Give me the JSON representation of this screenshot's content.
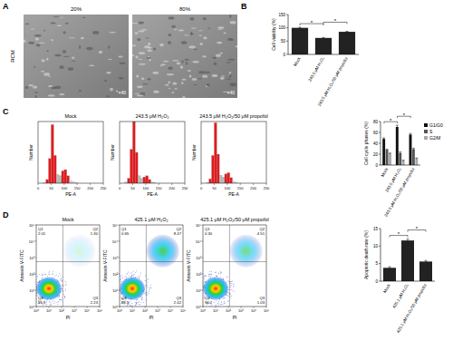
{
  "panel_labels": [
    "A",
    "B",
    "C",
    "D"
  ],
  "micrographs": {
    "row_label": "RCM",
    "images": [
      {
        "title": "20%",
        "magnification": "×40"
      },
      {
        "title": "80%",
        "magnification": "×40"
      }
    ]
  },
  "histograms": {
    "type": "histogram",
    "x_label": "PE-A",
    "y_label": "Number",
    "xlim": [
      0,
      250
    ],
    "xticks": [
      0,
      50,
      100,
      150,
      200,
      250
    ],
    "ylim": [
      0,
      100
    ],
    "tick_labels": "x",
    "bins": [
      0,
      10,
      20,
      30,
      40,
      50,
      60,
      70,
      80,
      90,
      100,
      110,
      120,
      130,
      140,
      150,
      160,
      170,
      180,
      190,
      200,
      210,
      220,
      230,
      240,
      250
    ],
    "colors": [
      "#d9d9d9",
      "#d9d9d9",
      "#d9d9d9",
      "#e31a1c",
      "#e31a1c",
      "#e31a1c",
      "#e31a1c",
      "#bdbdbd",
      "#bdbdbd",
      "#e31a1c",
      "#e31a1c",
      "#e31a1c",
      "#d9d9d9",
      "#d9d9d9",
      "#d9d9d9",
      "#d9d9d9",
      "#d9d9d9",
      "#d9d9d9",
      "#d9d9d9",
      "#d9d9d9",
      "#d9d9d9",
      "#d9d9d9",
      "#d9d9d9",
      "#d9d9d9",
      "#d9d9d9"
    ],
    "panels": [
      {
        "title": "Mock",
        "values": [
          0,
          0,
          1,
          6,
          40,
          95,
          45,
          14,
          12,
          20,
          22,
          12,
          4,
          2,
          1,
          0,
          0,
          0,
          0,
          0,
          0,
          0,
          0,
          0,
          0
        ]
      },
      {
        "title": "243.5 μM H₂O₂",
        "values": [
          0,
          0,
          2,
          8,
          55,
          100,
          50,
          12,
          8,
          10,
          12,
          6,
          2,
          1,
          0,
          0,
          0,
          0,
          0,
          0,
          0,
          0,
          0,
          0,
          0
        ]
      },
      {
        "title": "243.5 μM H₂O₂/50 μM propofol",
        "values": [
          0,
          0,
          1,
          7,
          45,
          98,
          47,
          13,
          10,
          15,
          17,
          9,
          3,
          1,
          0,
          0,
          0,
          0,
          0,
          0,
          0,
          0,
          0,
          0,
          0
        ]
      }
    ]
  },
  "dot_plots": {
    "type": "scatter",
    "x_label": "PI",
    "y_label": "Annexin V-FITC",
    "log": true,
    "xlim": [
      1,
      100000
    ],
    "ylim": [
      1,
      100000
    ],
    "xticks": [
      {
        "value": 1,
        "label": "10⁰"
      },
      {
        "value": 10,
        "label": "10¹"
      },
      {
        "value": 100,
        "label": "10²"
      },
      {
        "value": 1000,
        "label": "10³"
      },
      {
        "value": 10000,
        "label": "10⁴"
      },
      {
        "value": 100000,
        "label": "10⁵"
      }
    ],
    "yticks": [
      {
        "value": 1,
        "label": "10⁰"
      },
      {
        "value": 10,
        "label": "10¹"
      },
      {
        "value": 100,
        "label": "10²"
      },
      {
        "value": 1000,
        "label": "10³"
      },
      {
        "value": 10000,
        "label": "10⁴"
      },
      {
        "value": 100000,
        "label": "10⁵"
      }
    ],
    "panels": [
      {
        "title": "Mock",
        "quadrants": [
          {
            "name": "Q1",
            "value": 2.01
          },
          {
            "name": "Q2",
            "value": 1.3,
            "label": "1.30"
          },
          {
            "name": "Q3",
            "value": 2.23
          },
          {
            "name": "Q4",
            "value": 93.9
          }
        ]
      },
      {
        "title": "425.1 μM H₂O₂",
        "quadrants": [
          {
            "name": "Q1",
            "value": 0.65
          },
          {
            "name": "Q2",
            "value": 8.47
          },
          {
            "name": "Q3",
            "value": 2.42
          },
          {
            "name": "Q4",
            "value": 88.5
          }
        ]
      },
      {
        "title": "425.1 μM H₂O₂/50 μM propofol",
        "quadrants": [
          {
            "name": "Q1",
            "value": 0.3,
            "label": "0.30"
          },
          {
            "name": "Q2",
            "value": 4.51
          },
          {
            "name": "Q3",
            "value": 1.03
          },
          {
            "name": "Q4",
            "value": 94.2
          }
        ]
      }
    ]
  },
  "chart_data": [
    {
      "type": "bar",
      "y_label": "Cell viability (%)",
      "categories": [
        "Mock",
        "243.5 μM H₂O₂",
        "243.5 μM H₂O₂/50 μM propofol"
      ],
      "values": [
        100,
        62,
        85
      ],
      "errors": [
        2,
        2,
        2
      ],
      "color": "#222222",
      "ylim": [
        0,
        150
      ],
      "yticks": [
        0,
        50,
        100,
        150
      ],
      "annotations": [
        {
          "text": "*",
          "between": [
            0,
            1
          ]
        },
        {
          "text": "*",
          "between": [
            1,
            2
          ]
        }
      ]
    },
    {
      "type": "bar",
      "y_label": "Cell cycle phases (%)",
      "categories": [
        "Mock",
        "243.5 μM H₂O₂",
        "243.5 μM H₂O₂/50 μM propofol"
      ],
      "series": [
        {
          "name": "G1/G0",
          "color": "#111111",
          "values": [
            48,
            70,
            56
          ],
          "errors": [
            2,
            3,
            2
          ]
        },
        {
          "name": "S",
          "color": "#555555",
          "values": [
            28,
            22,
            29
          ],
          "errors": [
            1,
            2,
            2
          ]
        },
        {
          "name": "G2/M",
          "color": "#aaaaaa",
          "values": [
            21,
            8,
            12
          ],
          "errors": [
            1,
            1,
            1
          ]
        }
      ],
      "ylim": [
        0,
        80
      ],
      "yticks": [
        0,
        20,
        40,
        60,
        80
      ],
      "legend": "right",
      "annotations": [
        {
          "text": "*",
          "between": [
            0,
            1
          ]
        },
        {
          "text": "*",
          "between": [
            1,
            2
          ]
        }
      ]
    },
    {
      "type": "bar",
      "y_label": "Apoptotic death rate (%)",
      "categories": [
        "Mock",
        "425.1 μM H₂O₂",
        "425.1 μM H₂O₂/50 μM propofol"
      ],
      "values": [
        3.8,
        11.6,
        5.6
      ],
      "errors": [
        0.3,
        0.4,
        0.3
      ],
      "color": "#222222",
      "ylim": [
        0,
        15
      ],
      "yticks": [
        0,
        5,
        10,
        15
      ],
      "annotations": [
        {
          "text": "*",
          "between": [
            0,
            1
          ]
        },
        {
          "text": "*",
          "between": [
            1,
            2
          ]
        }
      ]
    }
  ]
}
